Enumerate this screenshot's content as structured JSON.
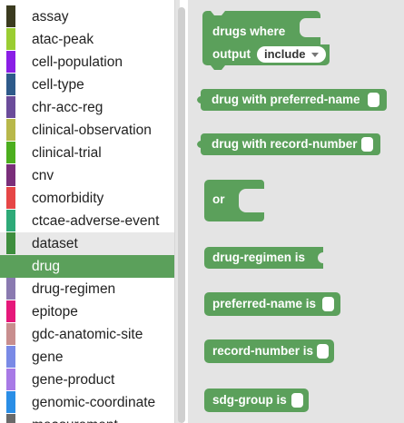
{
  "toolbox": {
    "categories": [
      {
        "label": "assay",
        "color": "#3b3b1f"
      },
      {
        "label": "atac-peak",
        "color": "#9acd32"
      },
      {
        "label": "cell-population",
        "color": "#8a1ee6"
      },
      {
        "label": "cell-type",
        "color": "#2e5a8a"
      },
      {
        "label": "chr-acc-reg",
        "color": "#6b4c9a"
      },
      {
        "label": "clinical-observation",
        "color": "#b8b84a"
      },
      {
        "label": "clinical-trial",
        "color": "#4cae1e"
      },
      {
        "label": "cnv",
        "color": "#7a2e7a"
      },
      {
        "label": "comorbidity",
        "color": "#e64646"
      },
      {
        "label": "ctcae-adverse-event",
        "color": "#2eaa78"
      },
      {
        "label": "dataset",
        "color": "#3e8e3e"
      },
      {
        "label": "drug",
        "color": "#5ba05b"
      },
      {
        "label": "drug-regimen",
        "color": "#8a7ab0"
      },
      {
        "label": "epitope",
        "color": "#e6187a"
      },
      {
        "label": "gdc-anatomic-site",
        "color": "#c88e8e"
      },
      {
        "label": "gene",
        "color": "#7a8ae6"
      },
      {
        "label": "gene-product",
        "color": "#a87ae6"
      },
      {
        "label": "genomic-coordinate",
        "color": "#2a8ee6"
      },
      {
        "label": "measurement",
        "color": "#6a6a6a"
      }
    ],
    "selected": "drug",
    "hovered": "dataset",
    "selected_bg": "#5ba05b"
  },
  "flyout": {
    "block_color": "#5ba05b",
    "blocks": {
      "drugs_where": {
        "line1": "drugs where",
        "line2": "output",
        "dropdown_value": "include"
      },
      "preferred_name": {
        "label": "drug with preferred-name"
      },
      "record_number": {
        "label": "drug with record-number"
      },
      "or": {
        "label": "or"
      },
      "drug_regimen": {
        "label": "drug-regimen is"
      },
      "preferred_name_is": {
        "label": "preferred-name is"
      },
      "record_number_is": {
        "label": "record-number is"
      },
      "sdg_group_is": {
        "label": "sdg-group is"
      }
    }
  }
}
